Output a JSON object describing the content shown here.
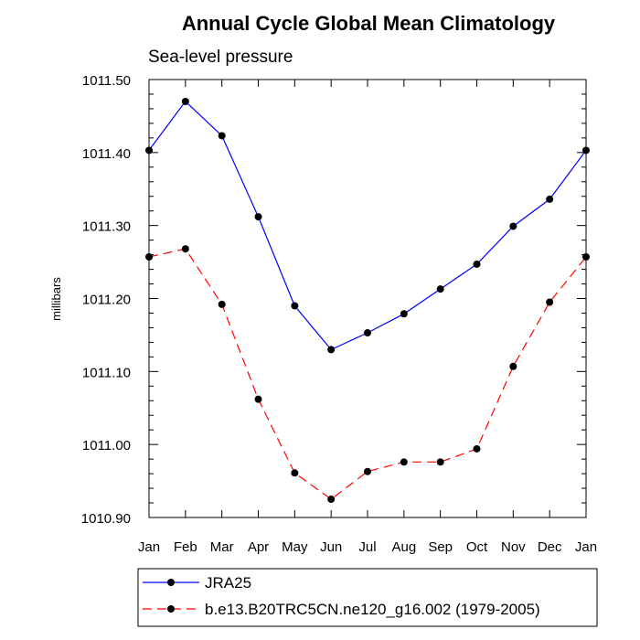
{
  "chart_data": {
    "type": "line",
    "title": "Annual Cycle Global Mean Climatology",
    "subtitle": "Sea-level pressure",
    "xlabel": "",
    "ylabel": "millibars",
    "categories": [
      "Jan",
      "Feb",
      "Mar",
      "Apr",
      "May",
      "Jun",
      "Jul",
      "Aug",
      "Sep",
      "Oct",
      "Nov",
      "Dec",
      "Jan"
    ],
    "ylim": [
      1010.9,
      1011.5
    ],
    "yticks": [
      "1010.90",
      "1011.00",
      "1011.10",
      "1011.20",
      "1011.30",
      "1011.40",
      "1011.50"
    ],
    "legend_position": "bottom",
    "grid": false,
    "series": [
      {
        "name": "JRA25",
        "color": "#0000ff",
        "style": "solid",
        "values": [
          1011.403,
          1011.47,
          1011.423,
          1011.312,
          1011.19,
          1011.13,
          1011.153,
          1011.179,
          1011.213,
          1011.247,
          1011.299,
          1011.336,
          1011.403
        ]
      },
      {
        "name": "b.e13.B20TRC5CN.ne120_g16.002 (1979-2005)",
        "color": "#ff0000",
        "style": "dashed",
        "values": [
          1011.257,
          1011.268,
          1011.192,
          1011.062,
          1010.961,
          1010.925,
          1010.963,
          1010.976,
          1010.976,
          1010.994,
          1011.107,
          1011.195,
          1011.257
        ]
      }
    ]
  }
}
